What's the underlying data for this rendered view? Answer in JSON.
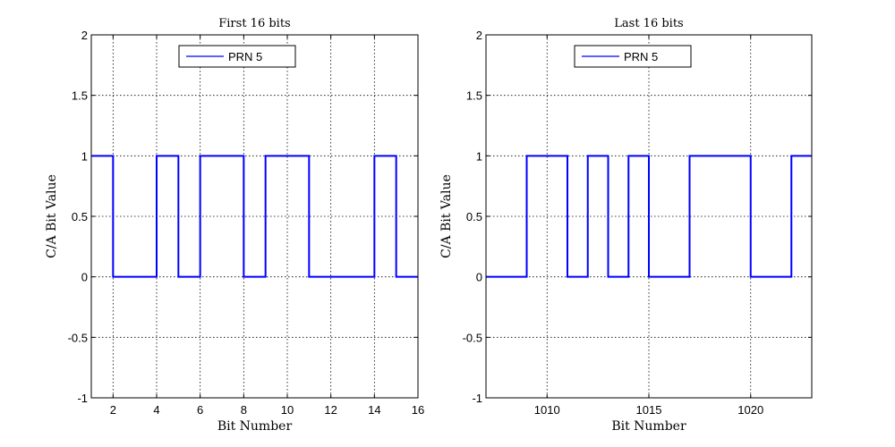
{
  "chart_data": [
    {
      "type": "line",
      "step": "post",
      "title": "First 16 bits",
      "xlabel": "Bit Number",
      "ylabel": "C/A Bit Value",
      "xlim": [
        1,
        16
      ],
      "ylim": [
        -1,
        2
      ],
      "grid": true,
      "legend_position": "top-center",
      "xticks": [
        2,
        4,
        6,
        8,
        10,
        12,
        14,
        16
      ],
      "yticks": [
        -1,
        -0.5,
        0,
        0.5,
        1,
        1.5,
        2
      ],
      "xtick_labels": [
        "2",
        "4",
        "6",
        "8",
        "10",
        "12",
        "14",
        "16"
      ],
      "ytick_labels": [
        "-1",
        "-0.5",
        "0",
        "0.5",
        "1",
        "1.5",
        "2"
      ],
      "series": [
        {
          "name": "PRN 5",
          "color": "#0000ff",
          "x": [
            1,
            2,
            3,
            4,
            5,
            6,
            7,
            8,
            9,
            10,
            11,
            12,
            13,
            14,
            15,
            16
          ],
          "values": [
            1,
            0,
            0,
            1,
            0,
            1,
            1,
            0,
            1,
            1,
            0,
            0,
            0,
            1,
            0,
            0
          ]
        }
      ]
    },
    {
      "type": "line",
      "step": "post",
      "title": "Last 16 bits",
      "xlabel": "Bit Number",
      "ylabel": "C/A Bit Value",
      "xlim": [
        1007,
        1023
      ],
      "ylim": [
        -1,
        2
      ],
      "grid": true,
      "legend_position": "top-center",
      "xticks": [
        1010,
        1015,
        1020
      ],
      "yticks": [
        -1,
        -0.5,
        0,
        0.5,
        1,
        1.5,
        2
      ],
      "xtick_labels": [
        "1010",
        "1015",
        "1020"
      ],
      "ytick_labels": [
        "-1",
        "-0.5",
        "0",
        "0.5",
        "1",
        "1.5",
        "2"
      ],
      "series": [
        {
          "name": "PRN 5",
          "color": "#0000ff",
          "x": [
            1007,
            1008,
            1009,
            1010,
            1011,
            1012,
            1013,
            1014,
            1015,
            1016,
            1017,
            1018,
            1019,
            1020,
            1021,
            1022,
            1023
          ],
          "values": [
            0,
            0,
            1,
            1,
            0,
            1,
            0,
            1,
            0,
            0,
            1,
            1,
            1,
            0,
            0,
            1,
            1
          ]
        }
      ]
    }
  ]
}
